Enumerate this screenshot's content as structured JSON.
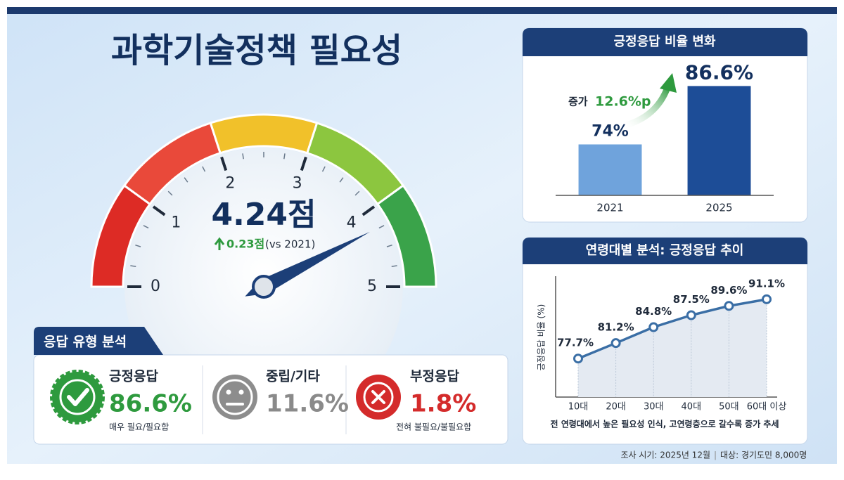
{
  "title": "과학기술정책 필요성",
  "gauge": {
    "value": 4.24,
    "value_label": "4.24점",
    "change": "0.23점",
    "change_note": "(vs 2021)",
    "range": [
      0,
      5
    ],
    "ticks": [
      0,
      1,
      2,
      3,
      4,
      5
    ],
    "band_colors": [
      "#dd2b25",
      "#e9493a",
      "#f1c12a",
      "#8cc63f",
      "#3aa34a"
    ],
    "needle_color": "#1c3f78"
  },
  "response_types": {
    "title": "응답 유형 분석",
    "items": [
      {
        "name": "긍정응답",
        "value": "86.6%",
        "note": "매우 필요/필요함",
        "color": "#2e9a3e"
      },
      {
        "name": "중립/기타",
        "value": "11.6%",
        "color": "#8a8a8a"
      },
      {
        "name": "부정응답",
        "value": "1.8%",
        "note": "전혀 불필요/불필요함",
        "color": "#d42b2b"
      }
    ]
  },
  "chart_data": [
    {
      "type": "bar",
      "title": "긍정응답 비율 변화",
      "categories": [
        "2021",
        "2025"
      ],
      "values": [
        74,
        86.6
      ],
      "value_labels": [
        "74%",
        "86.6%"
      ],
      "colors": [
        "#6fa3dc",
        "#1d4d97"
      ],
      "ylim": [
        63,
        90
      ],
      "annotation": {
        "prefix": "증가",
        "text": "12.6%p",
        "color": "#2e9a3e"
      }
    },
    {
      "type": "line",
      "title": "연령대별 분석: 긍정응답 추이",
      "y_label": "긍정응답 비율 (%)",
      "categories": [
        "10대",
        "20대",
        "30대",
        "40대",
        "50대",
        "60대 이상"
      ],
      "series": [
        {
          "name": "긍정응답 비율",
          "color": "#3a6ea5",
          "values": [
            77.7,
            81.2,
            84.8,
            87.5,
            89.6,
            91.1
          ],
          "value_labels": [
            "77.7%",
            "81.2%",
            "84.8%",
            "87.5%",
            "89.6%",
            "91.1%"
          ]
        }
      ],
      "ylim": [
        69,
        96
      ],
      "note": "전 연령대에서 높은 필요성 인식, 고연령층으로 갈수록 증가 추세"
    }
  ],
  "footer": {
    "period": "조사 시기: 2025년 12월",
    "target": "대상: 경기도민 8,000명"
  }
}
